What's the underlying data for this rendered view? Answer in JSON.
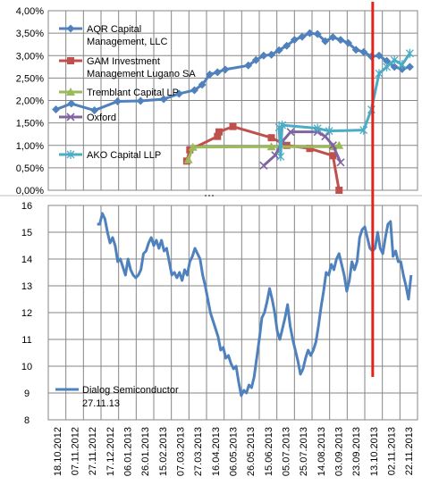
{
  "chart_data": [
    {
      "type": "line",
      "y_tick_labels": [
        "0,00%",
        "0,50%",
        "1,00%",
        "1,50%",
        "2,00%",
        "2,50%",
        "3,00%",
        "3,50%",
        "4,00%"
      ],
      "ylim": [
        0,
        4.0
      ],
      "grid": true,
      "legend_position": "left",
      "series": [
        {
          "name": "AQR Capital Management, LLC",
          "color": "#4f81bd",
          "points": [
            [
              1,
              1.8
            ],
            [
              3,
              1.93
            ],
            [
              6,
              1.78
            ],
            [
              9,
              1.98
            ],
            [
              12,
              1.99
            ],
            [
              15,
              2.03
            ],
            [
              17,
              2.15
            ],
            [
              19,
              2.23
            ],
            [
              20,
              2.35
            ],
            [
              21,
              2.58
            ],
            [
              22,
              2.63
            ],
            [
              23,
              2.69
            ],
            [
              26,
              2.78
            ],
            [
              27,
              2.9
            ],
            [
              28,
              3.0
            ],
            [
              29,
              3.02
            ],
            [
              30,
              3.12
            ],
            [
              31,
              3.22
            ],
            [
              32,
              3.35
            ],
            [
              33,
              3.42
            ],
            [
              34,
              3.5
            ],
            [
              35,
              3.48
            ],
            [
              36,
              3.32
            ],
            [
              37,
              3.41
            ],
            [
              38,
              3.35
            ],
            [
              39,
              3.28
            ],
            [
              40,
              3.13
            ],
            [
              41,
              3.08
            ],
            [
              42,
              2.98
            ],
            [
              43,
              3.0
            ],
            [
              44,
              2.88
            ],
            [
              45,
              2.75
            ],
            [
              46,
              2.7
            ],
            [
              47,
              2.75
            ]
          ]
        },
        {
          "name": "GAM Investment Management Lugano SA",
          "color": "#c0504d",
          "points": [
            [
              18,
              0.65
            ],
            [
              18.4,
              0.9
            ],
            [
              22,
              1.2
            ],
            [
              22.2,
              1.3
            ],
            [
              24,
              1.42
            ],
            [
              29,
              1.17
            ],
            [
              31,
              1.0
            ],
            [
              34,
              0.93
            ],
            [
              37,
              0.77
            ],
            [
              37.8,
              0.0
            ]
          ]
        },
        {
          "name": "Tremblant Capital LP",
          "color": "#9bbb59",
          "points": [
            [
              18.2,
              0.68
            ],
            [
              18.8,
              0.96
            ],
            [
              29,
              0.97
            ],
            [
              37,
              0.97
            ],
            [
              37.8,
              1.0
            ]
          ]
        },
        {
          "name": "Oxford",
          "color": "#8064a2",
          "points": [
            [
              28,
              0.55
            ],
            [
              29.5,
              0.78
            ],
            [
              30.5,
              1.1
            ],
            [
              31.5,
              1.3
            ],
            [
              35,
              1.3
            ],
            [
              36,
              1.2
            ],
            [
              37,
              1.0
            ],
            [
              38,
              0.62
            ]
          ]
        },
        {
          "name": "AKO Capital LLP",
          "color": "#4bacc6",
          "points": [
            [
              30,
              1.4
            ],
            [
              30.2,
              0.75
            ],
            [
              30.4,
              1.45
            ],
            [
              35,
              1.38
            ],
            [
              36.5,
              1.32
            ],
            [
              41,
              1.34
            ],
            [
              42,
              1.8
            ],
            [
              43,
              2.6
            ],
            [
              44,
              2.75
            ],
            [
              45,
              2.9
            ],
            [
              46,
              2.8
            ],
            [
              47,
              3.05
            ]
          ]
        }
      ]
    },
    {
      "type": "line",
      "x_tick_labels": [
        "18.10.2012",
        "07.11.2012",
        "27.11.2012",
        "17.12.2012",
        "06.01.2013",
        "26.01.2013",
        "15.02.2013",
        "07.03.2013",
        "27.03.2013",
        "16.04.2013",
        "06.05.2013",
        "26.05.2013",
        "15.06.2013",
        "05.07.2013",
        "25.07.2013",
        "14.08.2013",
        "03.09.2013",
        "23.09.2013",
        "13.10.2013",
        "02.11.2013",
        "22.11.2013"
      ],
      "y_tick_labels": [
        "8",
        "9",
        "10",
        "11",
        "12",
        "13",
        "14",
        "15",
        "16"
      ],
      "ylim": [
        8,
        16
      ],
      "grid": true,
      "legend_position": "bottom-left",
      "vertical_marker_date": "13.10.2013",
      "series": [
        {
          "name": "Dialog Semiconductor 27.11.13",
          "color": "#4f81bd",
          "points": [
            [
              38,
              15.3
            ],
            [
              40,
              15.3
            ],
            [
              42,
              15.7
            ],
            [
              44,
              15.5
            ],
            [
              46,
              15.0
            ],
            [
              48,
              14.6
            ],
            [
              50,
              14.8
            ],
            [
              52,
              14.5
            ],
            [
              54,
              13.9
            ],
            [
              56,
              14.0
            ],
            [
              58,
              13.7
            ],
            [
              60,
              13.4
            ],
            [
              62,
              14.0
            ],
            [
              64,
              13.6
            ],
            [
              66,
              13.4
            ],
            [
              68,
              13.3
            ],
            [
              70,
              13.4
            ],
            [
              72,
              13.6
            ],
            [
              74,
              14.2
            ],
            [
              76,
              14.3
            ],
            [
              78,
              14.6
            ],
            [
              80,
              14.8
            ],
            [
              82,
              14.5
            ],
            [
              84,
              14.7
            ],
            [
              86,
              14.4
            ],
            [
              88,
              14.7
            ],
            [
              90,
              14.3
            ],
            [
              92,
              14.4
            ],
            [
              94,
              13.9
            ],
            [
              96,
              13.4
            ],
            [
              98,
              13.5
            ],
            [
              100,
              13.3
            ],
            [
              102,
              13.5
            ],
            [
              104,
              13.2
            ],
            [
              106,
              13.6
            ],
            [
              108,
              13.4
            ],
            [
              110,
              13.9
            ],
            [
              112,
              14.1
            ],
            [
              114,
              14.4
            ],
            [
              116,
              14.2
            ],
            [
              118,
              14.0
            ],
            [
              120,
              13.4
            ],
            [
              122,
              13.0
            ],
            [
              124,
              12.5
            ],
            [
              126,
              12.0
            ],
            [
              128,
              11.7
            ],
            [
              130,
              11.4
            ],
            [
              132,
              11.1
            ],
            [
              134,
              10.6
            ],
            [
              136,
              10.7
            ],
            [
              138,
              10.3
            ],
            [
              140,
              10.4
            ],
            [
              142,
              10.1
            ],
            [
              144,
              9.9
            ],
            [
              146,
              10.0
            ],
            [
              148,
              9.4
            ],
            [
              150,
              8.9
            ],
            [
              152,
              9.1
            ],
            [
              154,
              9.0
            ],
            [
              156,
              9.3
            ],
            [
              158,
              9.2
            ],
            [
              160,
              9.6
            ],
            [
              162,
              10.3
            ],
            [
              164,
              11.0
            ],
            [
              166,
              11.8
            ],
            [
              168,
              12.0
            ],
            [
              170,
              12.4
            ],
            [
              172,
              12.9
            ],
            [
              174,
              12.5
            ],
            [
              176,
              12.0
            ],
            [
              178,
              11.3
            ],
            [
              180,
              11.0
            ],
            [
              182,
              11.4
            ],
            [
              184,
              11.8
            ],
            [
              186,
              12.3
            ],
            [
              188,
              11.5
            ],
            [
              190,
              11.0
            ],
            [
              192,
              10.6
            ],
            [
              194,
              10.2
            ],
            [
              196,
              9.7
            ],
            [
              198,
              9.9
            ],
            [
              200,
              10.3
            ],
            [
              202,
              10.6
            ],
            [
              204,
              10.4
            ],
            [
              206,
              10.6
            ],
            [
              208,
              10.9
            ],
            [
              210,
              11.5
            ],
            [
              212,
              12.2
            ],
            [
              214,
              12.8
            ],
            [
              216,
              13.5
            ],
            [
              218,
              13.4
            ],
            [
              220,
              13.8
            ],
            [
              222,
              13.6
            ],
            [
              224,
              14.0
            ],
            [
              226,
              14.2
            ],
            [
              228,
              13.8
            ],
            [
              230,
              13.4
            ],
            [
              232,
              12.8
            ],
            [
              234,
              13.2
            ],
            [
              236,
              13.9
            ],
            [
              238,
              13.6
            ],
            [
              240,
              13.9
            ],
            [
              242,
              14.8
            ],
            [
              244,
              15.1
            ],
            [
              246,
              15.2
            ],
            [
              248,
              14.8
            ],
            [
              250,
              14.4
            ],
            [
              252,
              14.3
            ],
            [
              254,
              14.4
            ],
            [
              256,
              15.0
            ],
            [
              258,
              14.4
            ],
            [
              260,
              14.2
            ],
            [
              262,
              14.8
            ],
            [
              264,
              15.3
            ],
            [
              266,
              15.4
            ],
            [
              268,
              14.1
            ],
            [
              270,
              14.3
            ],
            [
              272,
              13.9
            ],
            [
              274,
              13.9
            ],
            [
              276,
              13.4
            ],
            [
              278,
              13.0
            ],
            [
              280,
              12.5
            ],
            [
              282,
              13.4
            ]
          ]
        }
      ]
    }
  ]
}
